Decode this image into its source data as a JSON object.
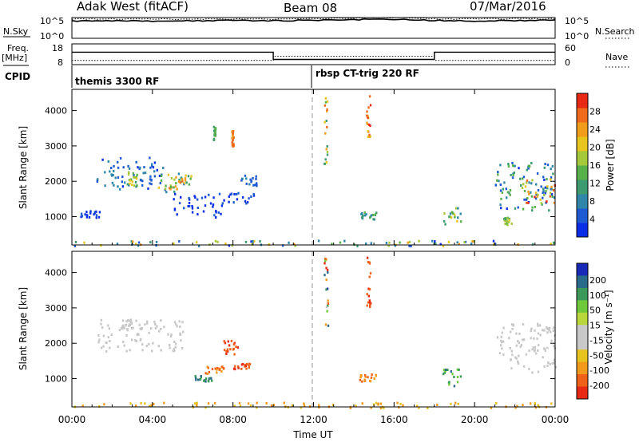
{
  "header": {
    "station": "Adak West (fitACF)",
    "beam": "Beam 08",
    "date": "07/Mar/2016"
  },
  "top_panel": {
    "nsky_label": "N.Sky",
    "nsky_ticks": [
      "10^5",
      "10^0"
    ],
    "nsearch_label": "N.Search",
    "nsearch_ticks": [
      "10^5",
      "10^0"
    ],
    "freq_label_1": "Freq.",
    "freq_label_2": "[MHz]",
    "freq_ticks": [
      "18",
      "8"
    ],
    "nave_label": "Nave",
    "nave_ticks": [
      "60",
      "0"
    ],
    "cpid_label": "CPID",
    "cpid_1": "themis 3300 RF",
    "cpid_2": "rbsp CT-trig 220 RF"
  },
  "colors": {
    "background_grey": "#c8c8c8",
    "dashed_line": "#9a9a9a"
  },
  "chart_data": [
    {
      "type": "heatmap",
      "name": "power-panel",
      "ylabel": "Slant Range [km]",
      "xlim": [
        0,
        24
      ],
      "ylim": [
        200,
        4600
      ],
      "y_ticks": [
        1000,
        2000,
        3000,
        4000
      ],
      "colorbar": {
        "label": "Power [dB]",
        "ticks": [
          "4",
          "8",
          "12",
          "16",
          "20",
          "24",
          "28"
        ],
        "colors": [
          "#0a2ee6",
          "#1e5ad2",
          "#2f86a8",
          "#3e9b70",
          "#57b04a",
          "#a6c93c",
          "#e7c41e",
          "#f29c1c",
          "#ef6a1a",
          "#e82a14"
        ]
      },
      "clusters": [
        {
          "t0": 1.2,
          "t1": 4.5,
          "r0": 1800,
          "r1": 2700,
          "pw": [
            4,
            10
          ]
        },
        {
          "t0": 2.6,
          "t1": 3.2,
          "r0": 1900,
          "r1": 2300,
          "pw": [
            10,
            22
          ]
        },
        {
          "t0": 4.2,
          "t1": 5.9,
          "r0": 1700,
          "r1": 2300,
          "pw": [
            6,
            24
          ]
        },
        {
          "t0": 4.8,
          "t1": 5.6,
          "r0": 1800,
          "r1": 2200,
          "pw": [
            14,
            26
          ]
        },
        {
          "t0": 0.4,
          "t1": 1.4,
          "r0": 1000,
          "r1": 1200,
          "pw": [
            3,
            6
          ]
        },
        {
          "t0": 5.0,
          "t1": 7.5,
          "r0": 1000,
          "r1": 1700,
          "pw": [
            3,
            6
          ]
        },
        {
          "t0": 7.5,
          "t1": 9.0,
          "r0": 1400,
          "r1": 1700,
          "pw": [
            3,
            6
          ]
        },
        {
          "t0": 8.3,
          "t1": 9.2,
          "r0": 1900,
          "r1": 2200,
          "pw": [
            4,
            8
          ]
        },
        {
          "t0": 7.0,
          "t1": 7.1,
          "r0": 3200,
          "r1": 3600,
          "pw": [
            10,
            16
          ]
        },
        {
          "t0": 7.9,
          "t1": 8.0,
          "r0": 3000,
          "r1": 3500,
          "pw": [
            24,
            28
          ]
        },
        {
          "t0": 12.5,
          "t1": 12.7,
          "r0": 2500,
          "r1": 4600,
          "pw": [
            12,
            28
          ]
        },
        {
          "t0": 14.6,
          "t1": 14.8,
          "r0": 3000,
          "r1": 4500,
          "pw": [
            20,
            28
          ]
        },
        {
          "t0": 14.3,
          "t1": 15.1,
          "r0": 950,
          "r1": 1150,
          "pw": [
            8,
            16
          ]
        },
        {
          "t0": 18.4,
          "t1": 19.3,
          "r0": 800,
          "r1": 1300,
          "pw": [
            8,
            20
          ]
        },
        {
          "t0": 21.0,
          "t1": 24.0,
          "r0": 1200,
          "r1": 2600,
          "pw": [
            4,
            16
          ]
        },
        {
          "t0": 22.3,
          "t1": 24.0,
          "r0": 1400,
          "r1": 2100,
          "pw": [
            16,
            28
          ]
        },
        {
          "t0": 21.4,
          "t1": 21.8,
          "r0": 800,
          "r1": 1000,
          "pw": [
            12,
            20
          ]
        },
        {
          "t0": 0.0,
          "t1": 24.0,
          "r0": 200,
          "r1": 350,
          "pw": [
            3,
            24
          ]
        }
      ]
    },
    {
      "type": "heatmap",
      "name": "velocity-panel",
      "ylabel": "Slant Range [km]",
      "xlabel": "Time UT",
      "xlim": [
        0,
        24
      ],
      "ylim": [
        200,
        4600
      ],
      "y_ticks": [
        1000,
        2000,
        3000,
        4000
      ],
      "x_ticks": [
        "00:00",
        "04:00",
        "08:00",
        "12:00",
        "16:00",
        "20:00",
        "00:00"
      ],
      "colorbar": {
        "label": "Velocity [m s⁻¹]",
        "ticks": [
          "200",
          "100",
          "50",
          "15",
          "-15",
          "-50",
          "-100",
          "-200"
        ],
        "colors": [
          "#1a2ab8",
          "#2a6a8a",
          "#3b9a5a",
          "#6ec83a",
          "#b9d63a",
          "#c8c8c8",
          "#c8c8c8",
          "#e6c31e",
          "#f29a1c",
          "#ef6018",
          "#e82a14"
        ]
      },
      "clusters": [
        {
          "t0": 1.2,
          "t1": 5.6,
          "r0": 1800,
          "r1": 2700,
          "v": [
            -15,
            15
          ]
        },
        {
          "t0": 2.4,
          "t1": 3.0,
          "r0": 2400,
          "r1": 2700,
          "v": [
            -15,
            15
          ]
        },
        {
          "t0": 6.6,
          "t1": 7.6,
          "r0": 1150,
          "r1": 1400,
          "v": [
            -100,
            -50
          ]
        },
        {
          "t0": 6.0,
          "t1": 7.0,
          "r0": 950,
          "r1": 1150,
          "v": [
            50,
            100
          ]
        },
        {
          "t0": 7.5,
          "t1": 8.2,
          "r0": 1700,
          "r1": 2100,
          "v": [
            -200,
            -100
          ]
        },
        {
          "t0": 8.0,
          "t1": 9.0,
          "r0": 1300,
          "r1": 1450,
          "v": [
            -200,
            -100
          ]
        },
        {
          "t0": 14.2,
          "t1": 15.1,
          "r0": 950,
          "r1": 1150,
          "v": [
            -100,
            -50
          ]
        },
        {
          "t0": 12.5,
          "t1": 12.7,
          "r0": 2500,
          "r1": 4500,
          "v": [
            -200,
            200
          ]
        },
        {
          "t0": 14.6,
          "t1": 14.8,
          "r0": 3000,
          "r1": 4500,
          "v": [
            -200,
            -100
          ]
        },
        {
          "t0": 18.4,
          "t1": 19.3,
          "r0": 800,
          "r1": 1300,
          "v": [
            15,
            80
          ]
        },
        {
          "t0": 21.0,
          "t1": 24.0,
          "r0": 1200,
          "r1": 2600,
          "v": [
            -15,
            15
          ]
        },
        {
          "t0": 0.0,
          "t1": 24.0,
          "r0": 200,
          "r1": 350,
          "v": [
            -50,
            -15
          ]
        }
      ]
    },
    {
      "type": "line",
      "name": "nsky-nsearch",
      "description_series": [
        "N.Sky",
        "N.Search"
      ],
      "x": [
        0,
        2,
        4,
        6,
        8,
        10,
        12,
        14,
        16,
        18,
        20,
        22,
        24
      ],
      "series": [
        {
          "name": "N.Sky",
          "values": [
            4.2,
            4.3,
            4.2,
            4.2,
            4.3,
            4.2,
            4.4,
            4.5,
            4.6,
            4.3,
            4.2,
            4.3,
            4.3
          ]
        },
        {
          "name": "N.Search",
          "values": [
            4.6,
            4.7,
            4.6,
            4.6,
            4.7,
            4.6,
            4.8,
            4.9,
            5.0,
            4.7,
            4.6,
            4.7,
            4.7
          ]
        }
      ],
      "ylim": [
        0,
        5
      ]
    },
    {
      "type": "line",
      "name": "freq-nave",
      "x": [
        0,
        10,
        10,
        18,
        18,
        24
      ],
      "series": [
        {
          "name": "Freq.",
          "values": [
            14,
            14,
            10.5,
            10.5,
            14,
            14
          ]
        },
        {
          "name": "Nave",
          "values": [
            10,
            10,
            12,
            12,
            10,
            10
          ]
        }
      ],
      "ylim": [
        8,
        18
      ]
    }
  ]
}
